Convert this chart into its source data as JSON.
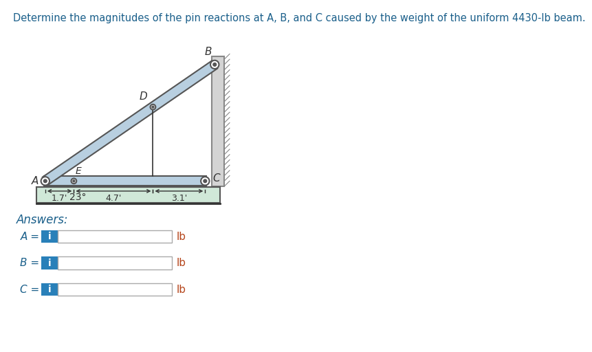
{
  "title": "Determine the magnitudes of the pin reactions at A, B, and C caused by the weight of the uniform 4430-lb beam.",
  "title_color": "#1a5f8a",
  "title_fontsize": 10.5,
  "label_color": "#333333",
  "beam_fill": "#b8cfe0",
  "beam_edge": "#555555",
  "wall_fill": "#d4d4d4",
  "wall_edge": "#888888",
  "floor_fill": "#d0e8d8",
  "floor_edge": "#555555",
  "pin_outer": "#ffffff",
  "pin_inner": "#555555",
  "dim_color": "#333333",
  "answers_color": "#b5451b",
  "eq_label_color": "#1a5f8a",
  "btn_color": "#2980b9",
  "btn_text": "#ffffff",
  "box_fill": "#ffffff",
  "box_edge": "#aaaaaa",
  "unit_color": "#b5451b",
  "label_23": "23°",
  "dim_1_7": "1.7'",
  "dim_4_7": "4.7'",
  "dim_3_1": "3.1'",
  "answers_label": "Answers:",
  "eq_rows": [
    "A =",
    "B =",
    "C ="
  ],
  "unit": "lb"
}
